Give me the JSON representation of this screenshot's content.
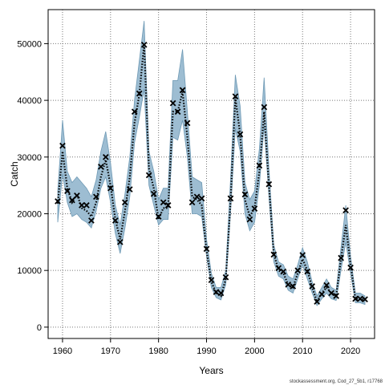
{
  "chart_data": {
    "type": "line",
    "xlabel": "Years",
    "ylabel": "Catch",
    "xlim": [
      1957,
      2025
    ],
    "ylim": [
      -2000,
      56000
    ],
    "xticks": [
      1960,
      1970,
      1980,
      1990,
      2000,
      2010,
      2020
    ],
    "yticks": [
      0,
      10000,
      20000,
      30000,
      40000,
      50000
    ],
    "grid": true,
    "footer": "stockassessment.org, Cod_27_5b1, r17768",
    "colors": {
      "band": "#9dbdd2",
      "band_edge": "#6f9ab5",
      "line": "#000000",
      "marker": "#000000"
    },
    "x": [
      1959,
      1960,
      1961,
      1962,
      1963,
      1964,
      1965,
      1966,
      1967,
      1968,
      1969,
      1970,
      1971,
      1972,
      1973,
      1974,
      1975,
      1976,
      1977,
      1978,
      1979,
      1980,
      1981,
      1982,
      1983,
      1984,
      1985,
      1986,
      1987,
      1988,
      1989,
      1990,
      1991,
      1992,
      1993,
      1994,
      1995,
      1996,
      1997,
      1998,
      1999,
      2000,
      2001,
      2002,
      2003,
      2004,
      2005,
      2006,
      2007,
      2008,
      2009,
      2010,
      2011,
      2012,
      2013,
      2014,
      2015,
      2016,
      2017,
      2018,
      2019,
      2020,
      2021,
      2022,
      2023
    ],
    "series": [
      {
        "name": "estimated",
        "style": "dotted-line",
        "values": [
          21800,
          31000,
          24500,
          22000,
          23500,
          21000,
          20500,
          19500,
          22000,
          26500,
          29500,
          25000,
          19000,
          15500,
          20500,
          26500,
          36000,
          41000,
          50000,
          28000,
          24500,
          19000,
          21000,
          21000,
          38000,
          38000,
          41500,
          33500,
          23000,
          22500,
          21500,
          13500,
          8000,
          6000,
          5500,
          8500,
          22000,
          40500,
          34000,
          22500,
          19500,
          21000,
          27500,
          38000,
          25000,
          13000,
          10000,
          9500,
          7500,
          7000,
          9500,
          12000,
          10000,
          7000,
          4500,
          6000,
          7000,
          6000,
          5500,
          12000,
          18000,
          11000,
          5000,
          5000,
          4800
        ]
      },
      {
        "name": "confidence-band-upper",
        "style": "band",
        "values": [
          24000,
          36500,
          27500,
          25500,
          26500,
          25500,
          24500,
          23000,
          26000,
          31000,
          34500,
          29000,
          21500,
          18000,
          23500,
          30000,
          40000,
          47000,
          54000,
          31000,
          27500,
          22500,
          24500,
          24500,
          43500,
          43500,
          49000,
          38000,
          26500,
          26000,
          25500,
          15500,
          9500,
          7000,
          7000,
          10000,
          26000,
          44500,
          39000,
          25500,
          22500,
          24000,
          31500,
          44000,
          28000,
          14500,
          11500,
          11000,
          9000,
          8500,
          11000,
          14000,
          11500,
          8000,
          5500,
          7000,
          8500,
          7000,
          6500,
          14000,
          21500,
          12500,
          6000,
          6000,
          5500
        ]
      },
      {
        "name": "confidence-band-lower",
        "style": "band",
        "values": [
          18500,
          27000,
          22000,
          19500,
          20000,
          19000,
          18500,
          17500,
          20500,
          24500,
          26500,
          22000,
          16500,
          13000,
          17500,
          23000,
          32500,
          37000,
          42000,
          25000,
          21500,
          18000,
          19000,
          19000,
          33500,
          33000,
          36500,
          30000,
          20000,
          20000,
          19500,
          12500,
          7000,
          5200,
          4800,
          7500,
          20000,
          35000,
          31000,
          20000,
          17000,
          18500,
          25000,
          35500,
          23000,
          11500,
          9000,
          8500,
          6500,
          6000,
          8500,
          11000,
          8500,
          6000,
          3800,
          5000,
          6000,
          5000,
          4700,
          10000,
          15000,
          9500,
          4300,
          4300,
          4000
        ]
      },
      {
        "name": "observed",
        "style": "markers",
        "values": [
          22200,
          32000,
          24000,
          22400,
          23200,
          21500,
          21500,
          18800,
          23000,
          28300,
          30000,
          24500,
          18800,
          15000,
          22000,
          24300,
          38000,
          41200,
          49800,
          26800,
          23500,
          19500,
          22000,
          21500,
          39500,
          38000,
          41800,
          36000,
          22000,
          23000,
          22700,
          13800,
          8300,
          6200,
          6000,
          8800,
          22700,
          40700,
          34000,
          23400,
          19000,
          20900,
          28500,
          38800,
          25200,
          12800,
          10400,
          9800,
          7500,
          7200,
          10000,
          12700,
          9800,
          7200,
          4500,
          5800,
          7400,
          6000,
          5500,
          12200,
          20600,
          10500,
          5000,
          5000,
          4900
        ]
      }
    ]
  }
}
